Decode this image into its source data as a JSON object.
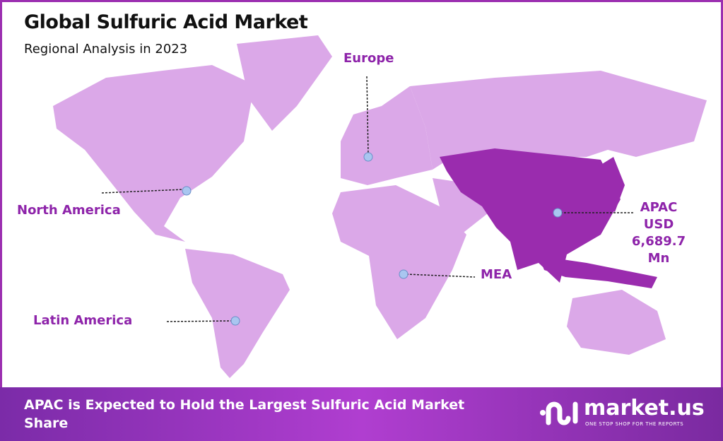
{
  "header": {
    "title": "Global Sulfuric Acid Market",
    "subtitle": "Regional Analysis in 2023"
  },
  "regions": [
    {
      "name": "North America"
    },
    {
      "name": "Europe"
    },
    {
      "name": "APAC",
      "value": "USD 6,689.7",
      "unit": "Mn",
      "highlighted": true
    },
    {
      "name": "MEA"
    },
    {
      "name": "Latin America"
    }
  ],
  "colors": {
    "land": "#dba8e8",
    "highlight": "#9a2cae",
    "label": "#8e24aa",
    "marker": "#a9c6f0"
  },
  "footer": {
    "text": "APAC is Expected to Hold the Largest Sulfuric Acid Market Share"
  },
  "logo": {
    "name": "market.us",
    "tagline": "ONE STOP SHOP FOR THE REPORTS"
  }
}
